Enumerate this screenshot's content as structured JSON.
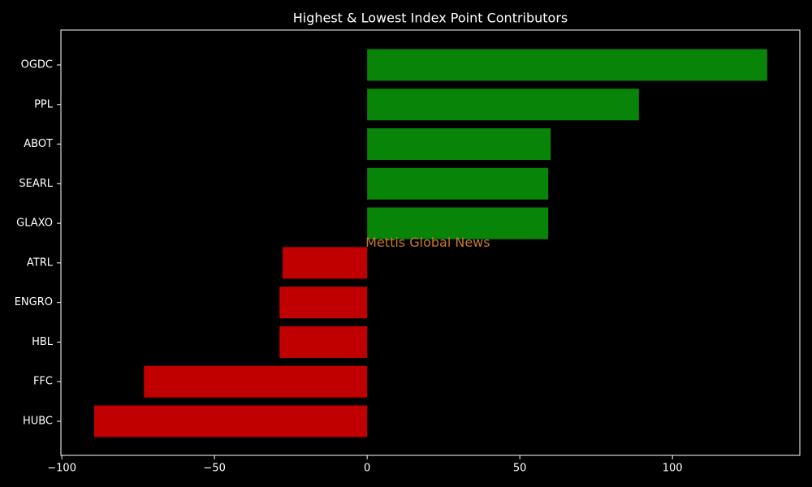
{
  "chart_data": {
    "type": "barh",
    "title": "Highest & Lowest Index Point Contributors",
    "annotation": "Mettis Global News",
    "categories": [
      "OGDC",
      "PPL",
      "ABOT",
      "SEARL",
      "GLAXO",
      "ATRL",
      "ENGRO",
      "HBL",
      "FFC",
      "HUBC"
    ],
    "values": [
      131,
      89,
      60.1,
      59.3,
      59.3,
      -27.7,
      -28.7,
      -28.7,
      -73.1,
      -89.4
    ],
    "positive_color": "#088508",
    "negative_color": "#c00000",
    "annotation_color": "#c8782a",
    "xlim": [
      -100.3,
      141.7
    ],
    "xticks": [
      {
        "value": -100,
        "label": "−100"
      },
      {
        "value": -50,
        "label": "−50"
      },
      0,
      50,
      100
    ]
  }
}
